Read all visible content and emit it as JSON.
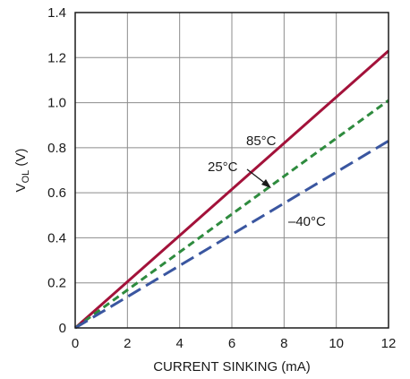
{
  "chart_data": {
    "type": "line",
    "xlabel": "CURRENT SINKING (mA)",
    "ylabel": {
      "main": "V",
      "sub": "OL",
      "unit": " (V)"
    },
    "xlim": [
      0,
      12
    ],
    "ylim": [
      0,
      1.4
    ],
    "x_ticks": [
      "0",
      "2",
      "4",
      "6",
      "8",
      "10",
      "12"
    ],
    "y_ticks": [
      "0",
      "0.2",
      "0.4",
      "0.6",
      "0.8",
      "1.0",
      "1.2",
      "1.4"
    ],
    "grid": true,
    "series": [
      {
        "name": "85°C",
        "color": "#a3123a",
        "dash": "solid",
        "x": [
          0,
          12
        ],
        "y": [
          0,
          1.23
        ]
      },
      {
        "name": "25°C",
        "color": "#2e8b3e",
        "dash": "short",
        "x": [
          0,
          12
        ],
        "y": [
          0,
          1.01
        ]
      },
      {
        "name": "–40°C",
        "color": "#3a56a0",
        "dash": "long",
        "x": [
          0,
          12
        ],
        "y": [
          0,
          0.83
        ]
      }
    ]
  }
}
